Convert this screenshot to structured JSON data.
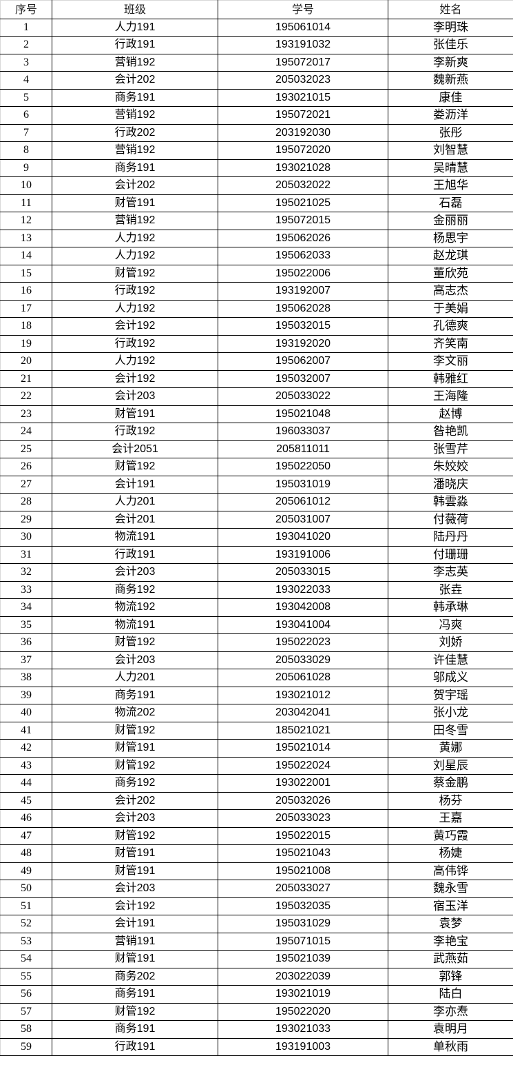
{
  "headers": [
    "序号",
    "班级",
    "学号",
    "姓名"
  ],
  "rows": [
    [
      "1",
      "人力191",
      "195061014",
      "李明珠"
    ],
    [
      "2",
      "行政191",
      "193191032",
      "张佳乐"
    ],
    [
      "3",
      "营销192",
      "195072017",
      "李新爽"
    ],
    [
      "4",
      "会计202",
      "205032023",
      "魏新燕"
    ],
    [
      "5",
      "商务191",
      "193021015",
      "康佳"
    ],
    [
      "6",
      "营销192",
      "195072021",
      "娄沥洋"
    ],
    [
      "7",
      "行政202",
      "203192030",
      "张彤"
    ],
    [
      "8",
      "营销192",
      "195072020",
      "刘智慧"
    ],
    [
      "9",
      "商务191",
      "193021028",
      "吴晴慧"
    ],
    [
      "10",
      "会计202",
      "205032022",
      "王旭华"
    ],
    [
      "11",
      "财管191",
      "195021025",
      "石磊"
    ],
    [
      "12",
      "营销192",
      "195072015",
      "金丽丽"
    ],
    [
      "13",
      "人力192",
      "195062026",
      "杨思宇"
    ],
    [
      "14",
      "人力192",
      "195062033",
      "赵龙琪"
    ],
    [
      "15",
      "财管192",
      "195022006",
      "董欣苑"
    ],
    [
      "16",
      "行政192",
      "193192007",
      "高志杰"
    ],
    [
      "17",
      "人力192",
      "195062028",
      "于美娟"
    ],
    [
      "18",
      "会计192",
      "195032015",
      "孔德爽"
    ],
    [
      "19",
      "行政192",
      "193192020",
      "齐笑南"
    ],
    [
      "20",
      "人力192",
      "195062007",
      "李文丽"
    ],
    [
      "21",
      "会计192",
      "195032007",
      "韩雅红"
    ],
    [
      "22",
      "会计203",
      "205033022",
      "王海隆"
    ],
    [
      "23",
      "财管191",
      "195021048",
      "赵博"
    ],
    [
      "24",
      "行政192",
      "196033037",
      "昝艳凯"
    ],
    [
      "25",
      "会计2051",
      "205811011",
      "张雪芹"
    ],
    [
      "26",
      "财管192",
      "195022050",
      "朱姣姣"
    ],
    [
      "27",
      "会计191",
      "195031019",
      "潘晓庆"
    ],
    [
      "28",
      "人力201",
      "205061012",
      "韩雲淼"
    ],
    [
      "29",
      "会计201",
      "205031007",
      "付薇荷"
    ],
    [
      "30",
      "物流191",
      "193041020",
      "陆丹丹"
    ],
    [
      "31",
      "行政191",
      "193191006",
      "付珊珊"
    ],
    [
      "32",
      "会计203",
      "205033015",
      "李志英"
    ],
    [
      "33",
      "商务192",
      "193022033",
      "张垚"
    ],
    [
      "34",
      "物流192",
      "193042008",
      "韩承琳"
    ],
    [
      "35",
      "物流191",
      "193041004",
      "冯爽"
    ],
    [
      "36",
      "财管192",
      "195022023",
      "刘娇"
    ],
    [
      "37",
      "会计203",
      "205033029",
      "许佳慧"
    ],
    [
      "38",
      "人力201",
      "205061028",
      "邬成义"
    ],
    [
      "39",
      "商务191",
      "193021012",
      "贺宇瑶"
    ],
    [
      "40",
      "物流202",
      "203042041",
      "张小龙"
    ],
    [
      "41",
      "财管192",
      "185021021",
      "田冬雪"
    ],
    [
      "42",
      "财管191",
      "195021014",
      "黄娜"
    ],
    [
      "43",
      "财管192",
      "195022024",
      "刘星辰"
    ],
    [
      "44",
      "商务192",
      "193022001",
      "蔡金鹏"
    ],
    [
      "45",
      "会计202",
      "205032026",
      "杨芬"
    ],
    [
      "46",
      "会计203",
      "205033023",
      "王嘉"
    ],
    [
      "47",
      "财管192",
      "195022015",
      "黄巧霞"
    ],
    [
      "48",
      "财管191",
      "195021043",
      "杨婕"
    ],
    [
      "49",
      "财管191",
      "195021008",
      "高伟铧"
    ],
    [
      "50",
      "会计203",
      "205033027",
      "魏永雪"
    ],
    [
      "51",
      "会计192",
      "195032035",
      "宿玉洋"
    ],
    [
      "52",
      "会计191",
      "195031029",
      "袁梦"
    ],
    [
      "53",
      "营销191",
      "195071015",
      "李艳宝"
    ],
    [
      "54",
      "财管191",
      "195021039",
      "武燕茹"
    ],
    [
      "55",
      "商务202",
      "203022039",
      "郭锋"
    ],
    [
      "56",
      "商务191",
      "193021019",
      "陆白"
    ],
    [
      "57",
      "财管192",
      "195022020",
      "李亦焘"
    ],
    [
      "58",
      "商务191",
      "193021033",
      "袁明月"
    ],
    [
      "59",
      "行政191",
      "193191003",
      "单秋雨"
    ]
  ]
}
